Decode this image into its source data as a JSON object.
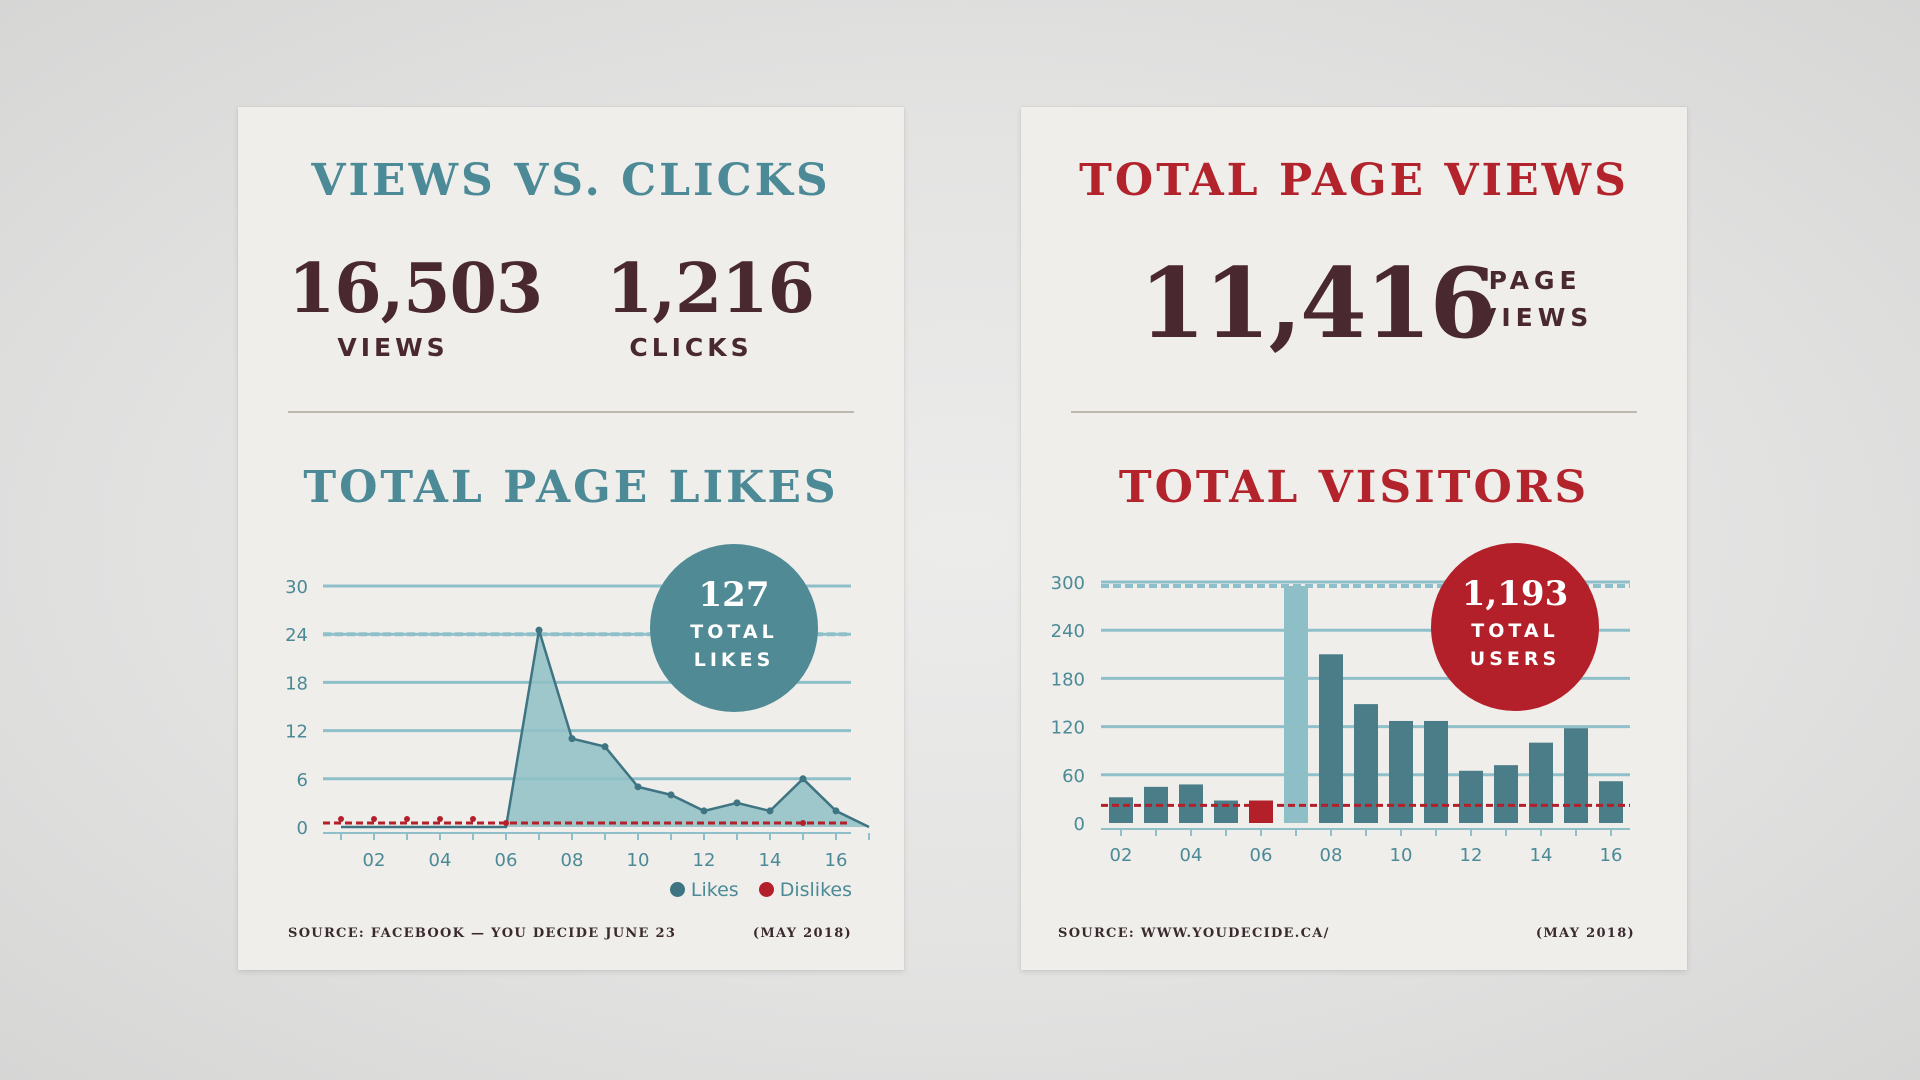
{
  "left_card": {
    "title": "VIEWS VS. CLICKS",
    "views": {
      "value": "16,503",
      "label": "VIEWS"
    },
    "clicks": {
      "value": "1,216",
      "label": "CLICKS"
    },
    "likes_title": "TOTAL PAGE LIKES",
    "badge": {
      "value": "127",
      "label_line1": "TOTAL",
      "label_line2": "LIKES"
    },
    "source": "SOURCE: FACEBOOK — YOU DECIDE JUNE 23",
    "date": "(MAY 2018)"
  },
  "right_card": {
    "title": "TOTAL PAGE VIEWS",
    "page_views": {
      "value": "11,416",
      "label_line1": "PAGE",
      "label_line2": "VIEWS"
    },
    "visitors_title": "TOTAL VISITORS",
    "badge": {
      "value": "1,193",
      "label_line1": "TOTAL",
      "label_line2": "USERS"
    },
    "source": "SOURCE: WWW.YOUDECIDE.CA/",
    "date": "(MAY 2018)"
  },
  "colors": {
    "teal": "#4b8a96",
    "teal_area": "#8fbfc6",
    "red": "#b3232c",
    "bar_dark": "#4a7d88",
    "bar_light": "#8fbfc6",
    "bar_red": "#b3202a",
    "dark_text": "#4a2830"
  },
  "chart_data": [
    {
      "type": "area",
      "title": "TOTAL PAGE LIKES",
      "x": [
        1,
        2,
        3,
        4,
        5,
        6,
        7,
        8,
        9,
        10,
        11,
        12,
        13,
        14,
        15,
        16,
        17
      ],
      "xticks": [
        "02",
        "04",
        "06",
        "08",
        "10",
        "12",
        "14",
        "16"
      ],
      "yticks": [
        "0",
        "6",
        "12",
        "18",
        "24",
        "30"
      ],
      "ylim": [
        0,
        30
      ],
      "reference_line": 24,
      "series": [
        {
          "name": "Likes",
          "values": [
            0,
            0,
            0,
            0,
            0,
            0,
            24.5,
            11,
            10,
            5,
            4,
            2,
            3,
            2,
            6,
            2,
            0
          ]
        },
        {
          "name": "Dislikes",
          "values": [
            1,
            1,
            1,
            1,
            1,
            0.5,
            0,
            0,
            0,
            0,
            0,
            0,
            0,
            0,
            0.5,
            0,
            0
          ]
        }
      ],
      "legend": [
        "Likes",
        "Dislikes"
      ],
      "legend_position": "bottom-right",
      "grid": true
    },
    {
      "type": "bar",
      "title": "TOTAL VISITORS",
      "x": [
        1,
        2,
        3,
        4,
        5,
        6,
        7,
        8,
        9,
        10,
        11,
        12,
        13,
        14,
        15
      ],
      "xticks": [
        "02",
        "04",
        "06",
        "08",
        "10",
        "12",
        "14",
        "16"
      ],
      "yticks": [
        "0",
        "60",
        "120",
        "180",
        "240",
        "300"
      ],
      "ylim": [
        0,
        300
      ],
      "reference_line": 295,
      "threshold_line": 22,
      "values": [
        32,
        45,
        48,
        28,
        28,
        295,
        210,
        148,
        127,
        127,
        65,
        72,
        100,
        118,
        52
      ],
      "highlight": {
        "red_index": 4,
        "light_index": 5
      },
      "grid": true
    }
  ]
}
